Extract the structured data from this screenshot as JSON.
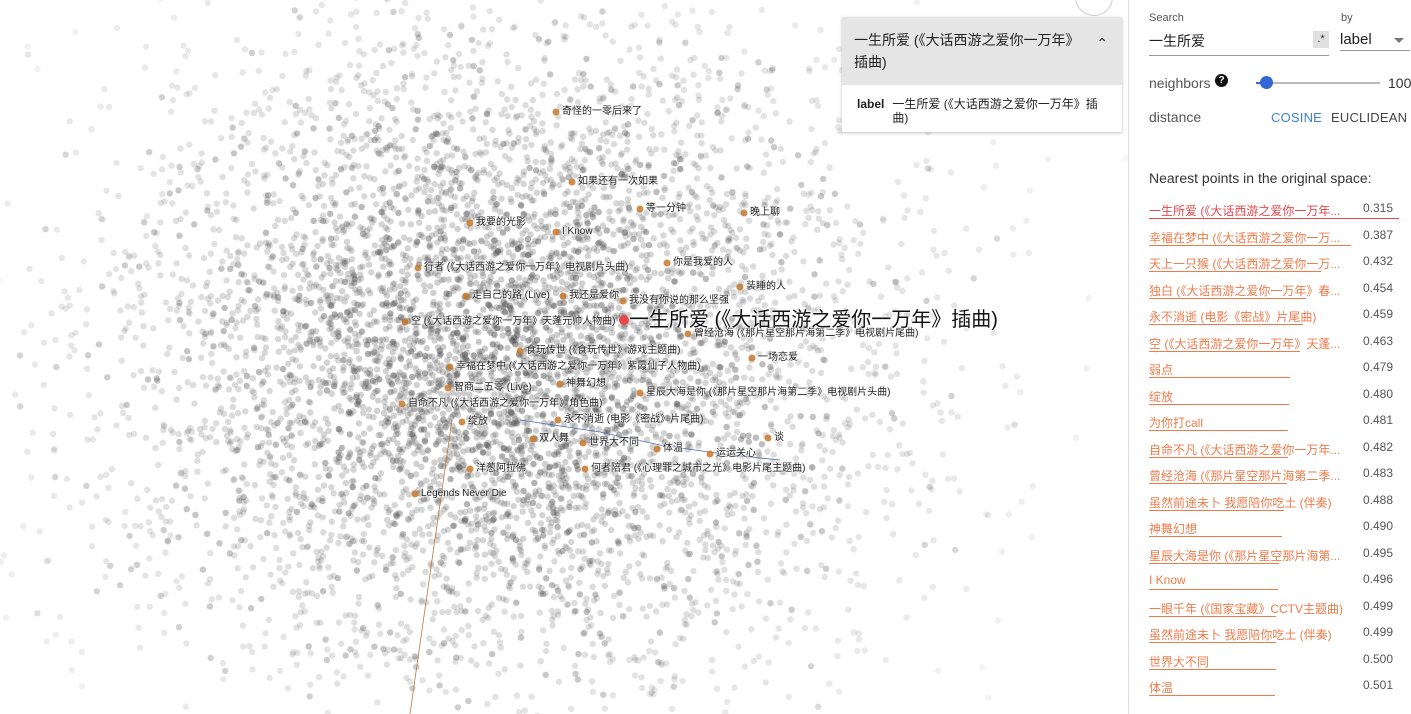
{
  "plot": {
    "selected_label": "一生所爱 (《大话西游之爱你一万年》插曲)",
    "labels": [
      {
        "text": "奇怪的一零后来了"
      },
      {
        "text": "如果还有一次如果"
      },
      {
        "text": "等一分钟"
      },
      {
        "text": "我要的光影"
      },
      {
        "text": "I Know"
      },
      {
        "text": "晚上聊"
      },
      {
        "text": "行者 (《大话西游之爱你一万年》电视剧片头曲)"
      },
      {
        "text": "你是我爱的人"
      },
      {
        "text": "走自己的路 (Live)"
      },
      {
        "text": "我还是爱你"
      },
      {
        "text": "我没有你说的那么坚强"
      },
      {
        "text": "装睡的人"
      },
      {
        "text": "空 (《大话西游之爱你一万年》天蓬元帅人物曲)"
      },
      {
        "text": "曾经沧海 (《那片星空那片海第二季》电视剧片尾曲)"
      },
      {
        "text": "食玩传世 (《食玩传世》游戏主题曲)"
      },
      {
        "text": "一场恋爱"
      },
      {
        "text": "幸福在梦中 (《大话西游之爱你一万年》紫霞仙子人物曲)"
      },
      {
        "text": "智商二五零 (Live)"
      },
      {
        "text": "神舞幻想"
      },
      {
        "text": "星辰大海是你 (《那片星空那片海第二季》电视剧片头曲)"
      },
      {
        "text": "自命不凡 (《大话西游之爱你一万年》角色曲)"
      },
      {
        "text": "绽放"
      },
      {
        "text": "永不消逝 (电影《密战》片尾曲)"
      },
      {
        "text": "谈"
      },
      {
        "text": "双人舞"
      },
      {
        "text": "世界大不同"
      },
      {
        "text": "体温"
      },
      {
        "text": "运运关心"
      },
      {
        "text": "洋葱阿拉佛"
      },
      {
        "text": "何者陪君 (《心理罪之城市之光》电影片尾主题曲)"
      },
      {
        "text": "Legends Never Die"
      }
    ]
  },
  "card": {
    "title": "一生所爱 (《大话西游之爱你一万年》插曲)",
    "collapse_icon": "chevron-up-icon",
    "key": "label",
    "value": "一生所爱 (《大话西游之爱你一万年》插曲)"
  },
  "panel": {
    "search_label": "Search",
    "search_value": "一生所爱",
    "regex_label": ".*",
    "by_label": "by",
    "by_value": "label",
    "neighbors_label": "neighbors",
    "neighbors_value": "100",
    "neighbors_fraction": 0.08,
    "distance_label": "distance",
    "cosine_label": "COSINE",
    "euclidean_label": "EUCLIDEAN",
    "active_distance": "cosine",
    "nearest_title": "Nearest points in the original space:",
    "accent": "#ee7b4a",
    "selected_color": "#e5474c",
    "cosine_color": "#3b82d6",
    "nearest": [
      {
        "name": "一生所爱 (《大话西游之爱你一万年...",
        "value": "0.315"
      },
      {
        "name": "幸福在梦中 (《大话西游之爱你一万...",
        "value": "0.387"
      },
      {
        "name": "天上一只猴 (《大话西游之爱你一万...",
        "value": "0.432"
      },
      {
        "name": "独白 (《大话西游之爱你一万年》春...",
        "value": "0.454"
      },
      {
        "name": "永不消逝 (电影《密战》片尾曲)",
        "value": "0.459"
      },
      {
        "name": "空 (《大话西游之爱你一万年》天蓬...",
        "value": "0.463"
      },
      {
        "name": "弱点",
        "value": "0.479"
      },
      {
        "name": "绽放",
        "value": "0.480"
      },
      {
        "name": "为你打call",
        "value": "0.481"
      },
      {
        "name": "自命不凡 (《大话西游之爱你一万年...",
        "value": "0.482"
      },
      {
        "name": "曾经沧海 (《那片星空那片海第二季...",
        "value": "0.483"
      },
      {
        "name": "虽然前途未卜 我愿陪你吃土 (伴奏)",
        "value": "0.488"
      },
      {
        "name": "神舞幻想",
        "value": "0.490"
      },
      {
        "name": "星辰大海是你 (《那片星空那片海第...",
        "value": "0.495"
      },
      {
        "name": "I Know",
        "value": "0.496"
      },
      {
        "name": "一眼千年 (《国家宝藏》CCTV主题曲)",
        "value": "0.499"
      },
      {
        "name": "虽然前途未卜 我愿陪你吃土 (伴奏)",
        "value": "0.499"
      },
      {
        "name": "世界大不同",
        "value": "0.500"
      },
      {
        "name": "体温",
        "value": "0.501"
      }
    ]
  }
}
